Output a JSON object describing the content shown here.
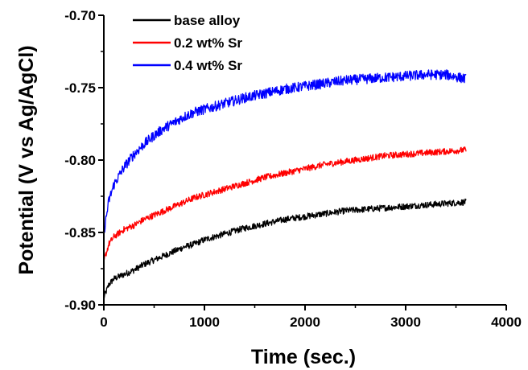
{
  "chart_data": {
    "type": "line",
    "xlabel": "Time (sec.)",
    "ylabel": "Potential (V vs Ag/AgCl)",
    "xlim": [
      0,
      4000
    ],
    "ylim": [
      -0.9,
      -0.7
    ],
    "x_ticks": [
      0,
      1000,
      2000,
      3000,
      4000
    ],
    "x_tick_labels": [
      "0",
      "1000",
      "2000",
      "3000",
      "4000"
    ],
    "y_ticks": [
      -0.9,
      -0.85,
      -0.8,
      -0.75,
      -0.7
    ],
    "y_tick_labels": [
      "-0.90",
      "-0.85",
      "-0.80",
      "-0.75",
      "-0.70"
    ],
    "grid": false,
    "legend_position": "top-left",
    "series": [
      {
        "name": "base alloy",
        "color": "#000000",
        "x": [
          0,
          50,
          100,
          200,
          300,
          400,
          500,
          600,
          700,
          800,
          900,
          1000,
          1200,
          1400,
          1600,
          1800,
          2000,
          2200,
          2400,
          2600,
          2800,
          3000,
          3200,
          3400,
          3600
        ],
        "y": [
          -0.895,
          -0.886,
          -0.882,
          -0.879,
          -0.876,
          -0.872,
          -0.869,
          -0.866,
          -0.863,
          -0.86,
          -0.858,
          -0.855,
          -0.851,
          -0.847,
          -0.844,
          -0.841,
          -0.839,
          -0.837,
          -0.835,
          -0.834,
          -0.833,
          -0.832,
          -0.831,
          -0.83,
          -0.829
        ]
      },
      {
        "name": "0.2 wt% Sr",
        "color": "#ff0000",
        "x": [
          0,
          50,
          100,
          200,
          300,
          400,
          500,
          600,
          700,
          800,
          900,
          1000,
          1200,
          1400,
          1600,
          1800,
          2000,
          2200,
          2400,
          2600,
          2800,
          3000,
          3200,
          3400,
          3600
        ],
        "y": [
          -0.87,
          -0.858,
          -0.853,
          -0.848,
          -0.845,
          -0.841,
          -0.838,
          -0.835,
          -0.832,
          -0.829,
          -0.826,
          -0.824,
          -0.82,
          -0.816,
          -0.812,
          -0.809,
          -0.806,
          -0.803,
          -0.801,
          -0.799,
          -0.797,
          -0.796,
          -0.795,
          -0.794,
          -0.793
        ]
      },
      {
        "name": "0.4 wt% Sr",
        "color": "#0000ff",
        "x": [
          0,
          50,
          100,
          200,
          300,
          400,
          500,
          600,
          700,
          800,
          900,
          1000,
          1200,
          1400,
          1600,
          1800,
          2000,
          2200,
          2400,
          2600,
          2800,
          3000,
          3200,
          3400,
          3600
        ],
        "y": [
          -0.85,
          -0.828,
          -0.817,
          -0.805,
          -0.796,
          -0.789,
          -0.783,
          -0.778,
          -0.774,
          -0.77,
          -0.767,
          -0.765,
          -0.761,
          -0.757,
          -0.754,
          -0.751,
          -0.749,
          -0.747,
          -0.745,
          -0.744,
          -0.743,
          -0.742,
          -0.741,
          -0.741,
          -0.744
        ]
      }
    ]
  }
}
